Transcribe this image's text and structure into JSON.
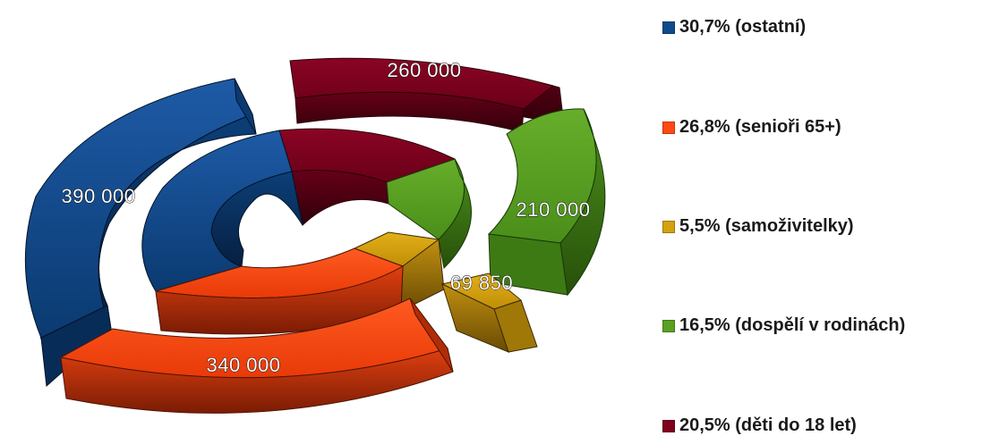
{
  "chart_data": {
    "type": "pie",
    "style": "3d-exploded-double-donut",
    "colors": {
      "ostatni": "#0e4a8c",
      "seniori": "#ff4a12",
      "samozivitelky": "#d4a20c",
      "dospeli": "#5aa022",
      "deti": "#80001e"
    },
    "legend": [
      {
        "key": "ostatni",
        "label": "30,7% (ostatní)",
        "value": 30.7
      },
      {
        "key": "seniori",
        "label": "26,8% (senioři 65+)",
        "value": 26.8
      },
      {
        "key": "samozivitelky",
        "label": "5,5% (samoživitelky)",
        "value": 5.5
      },
      {
        "key": "dospeli",
        "label": "16,5% (dospělí v rodinách)",
        "value": 16.5
      },
      {
        "key": "deti",
        "label": "20,5% (děti do 18 let)",
        "value": 20.5
      }
    ],
    "outer_ring_values": [
      {
        "key": "ostatni",
        "value": 390000,
        "label": "390 000"
      },
      {
        "key": "seniori",
        "value": 340000,
        "label": "340 000"
      },
      {
        "key": "samozivitelky",
        "value": 69850,
        "label": "69 850"
      },
      {
        "key": "dospeli",
        "value": 210000,
        "label": "210 000"
      },
      {
        "key": "deti",
        "value": 260000,
        "label": "260 000"
      }
    ],
    "legend_position": "right"
  }
}
